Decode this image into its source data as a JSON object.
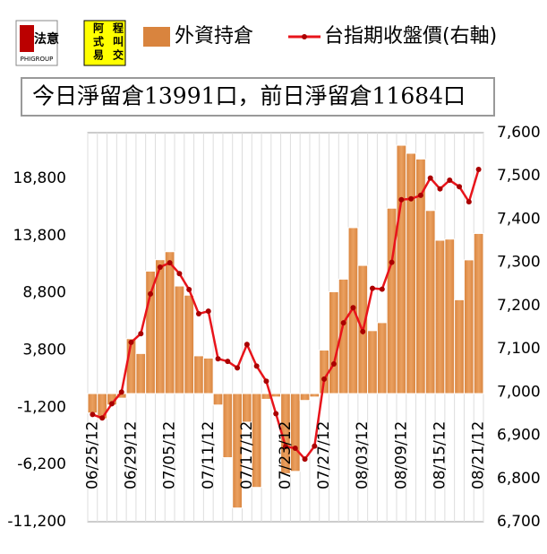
{
  "logo": {
    "name": "法意",
    "sub": "PHIGROUP",
    "chars": [
      "阿",
      "程",
      "式",
      "叫",
      "易",
      "交"
    ]
  },
  "chart_data": {
    "type": "bar_line",
    "headline": "今日淨留倉13991口，前日淨留倉11684口",
    "categories": [
      "06/25/12",
      null,
      null,
      null,
      "06/29/12",
      null,
      null,
      null,
      "07/05/12",
      null,
      null,
      null,
      "07/11/12",
      null,
      null,
      null,
      "07/17/12",
      null,
      null,
      null,
      "07/23/12",
      null,
      null,
      null,
      "07/27/12",
      null,
      null,
      null,
      "08/03/12",
      null,
      null,
      null,
      "08/09/12",
      null,
      null,
      null,
      "08/15/12",
      null,
      null,
      null,
      "08/21/12"
    ],
    "series": [
      {
        "name": "外資持倉",
        "color": "#d9843e",
        "values": [
          -1700,
          -2200,
          -1000,
          -400,
          4800,
          3500,
          10700,
          11700,
          12400,
          9400,
          8600,
          3300,
          3100,
          -1000,
          -5600,
          -10000,
          -2500,
          -8200,
          -500,
          -300,
          -7000,
          -6800,
          -600,
          -300,
          3800,
          8900,
          10000,
          14500,
          11200,
          5500,
          6200,
          16200,
          21700,
          21000,
          20500,
          16000,
          13400,
          13500,
          8200,
          11684,
          13991
        ]
      },
      {
        "name": "台指期收盤價(右軸)",
        "color": "#e8141b",
        "axis": "y2",
        "values": [
          6948,
          6940,
          6973,
          7000,
          7115,
          7135,
          7227,
          7289,
          7299,
          7274,
          7237,
          7181,
          7187,
          7077,
          7071,
          7056,
          7110,
          7060,
          7025,
          6950,
          6874,
          6870,
          6845,
          6875,
          7030,
          7065,
          7160,
          7195,
          7140,
          7240,
          7238,
          7300,
          7445,
          7447,
          7455,
          7495,
          7470,
          7490,
          7475,
          7440,
          7515
        ]
      }
    ],
    "ylim": [
      -11200,
      22800
    ],
    "yticks": [
      {
        "value": -11200,
        "label": "-11,200"
      },
      {
        "value": -6200,
        "label": "-6,200"
      },
      {
        "value": -1200,
        "label": "-1,200"
      },
      {
        "value": 3800,
        "label": "3,800"
      },
      {
        "value": 8800,
        "label": "8,800"
      },
      {
        "value": 13800,
        "label": "13,800"
      },
      {
        "value": 18800,
        "label": "18,800"
      }
    ],
    "y2lim": [
      6700,
      7600
    ],
    "y2ticks": [
      {
        "value": 6700,
        "label": "6,700"
      },
      {
        "value": 6800,
        "label": "6,800"
      },
      {
        "value": 6900,
        "label": "6,900"
      },
      {
        "value": 7000,
        "label": "7,000"
      },
      {
        "value": 7100,
        "label": "7,100"
      },
      {
        "value": 7200,
        "label": "7,200"
      },
      {
        "value": 7300,
        "label": "7,300"
      },
      {
        "value": 7400,
        "label": "7,400"
      },
      {
        "value": 7500,
        "label": "7,500"
      },
      {
        "value": 7600,
        "label": "7,600"
      }
    ]
  }
}
